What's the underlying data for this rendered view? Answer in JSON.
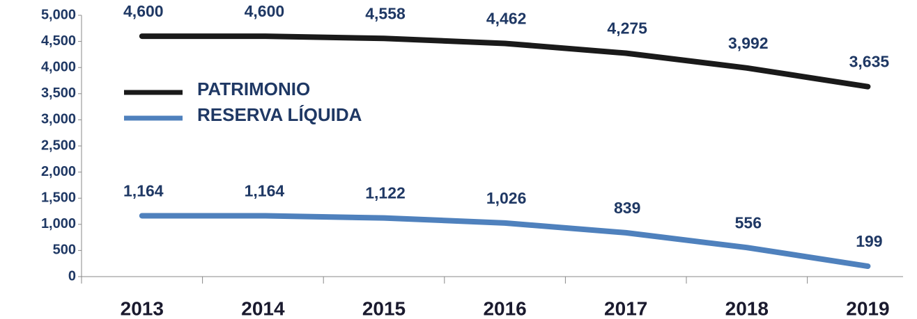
{
  "chart_data": {
    "type": "line",
    "categories": [
      "2013",
      "2014",
      "2015",
      "2016",
      "2017",
      "2018",
      "2019"
    ],
    "series": [
      {
        "name": "PATRIMONIO",
        "color": "#1a1a1a",
        "values": [
          4600,
          4600,
          4558,
          4462,
          4275,
          3992,
          3635
        ],
        "value_labels": [
          "4,600",
          "4,600",
          "4,558",
          "4,462",
          "4,275",
          "3,992",
          "3,635"
        ]
      },
      {
        "name": "RESERVA LÍQUIDA",
        "color": "#4f81bd",
        "values": [
          1164,
          1164,
          1122,
          1026,
          839,
          556,
          199
        ],
        "value_labels": [
          "1,164",
          "1,164",
          "1,122",
          "1,026",
          "839",
          "556",
          "199"
        ]
      }
    ],
    "ylim": [
      0,
      5000
    ],
    "yticks": [
      0,
      500,
      {
        "value": 1000,
        "label": "1,000"
      },
      {
        "value": 1500,
        "label": "1,500"
      },
      {
        "value": 2000,
        "label": "2,000"
      },
      {
        "value": 2500,
        "label": "2,500"
      },
      {
        "value": 3000,
        "label": "3,000"
      },
      {
        "value": 3500,
        "label": "3,500"
      },
      {
        "value": 4000,
        "label": "4,000"
      },
      {
        "value": 4500,
        "label": "4,500"
      },
      {
        "value": 5000,
        "label": "5,000"
      }
    ],
    "grid": false,
    "legend": "upper left"
  }
}
